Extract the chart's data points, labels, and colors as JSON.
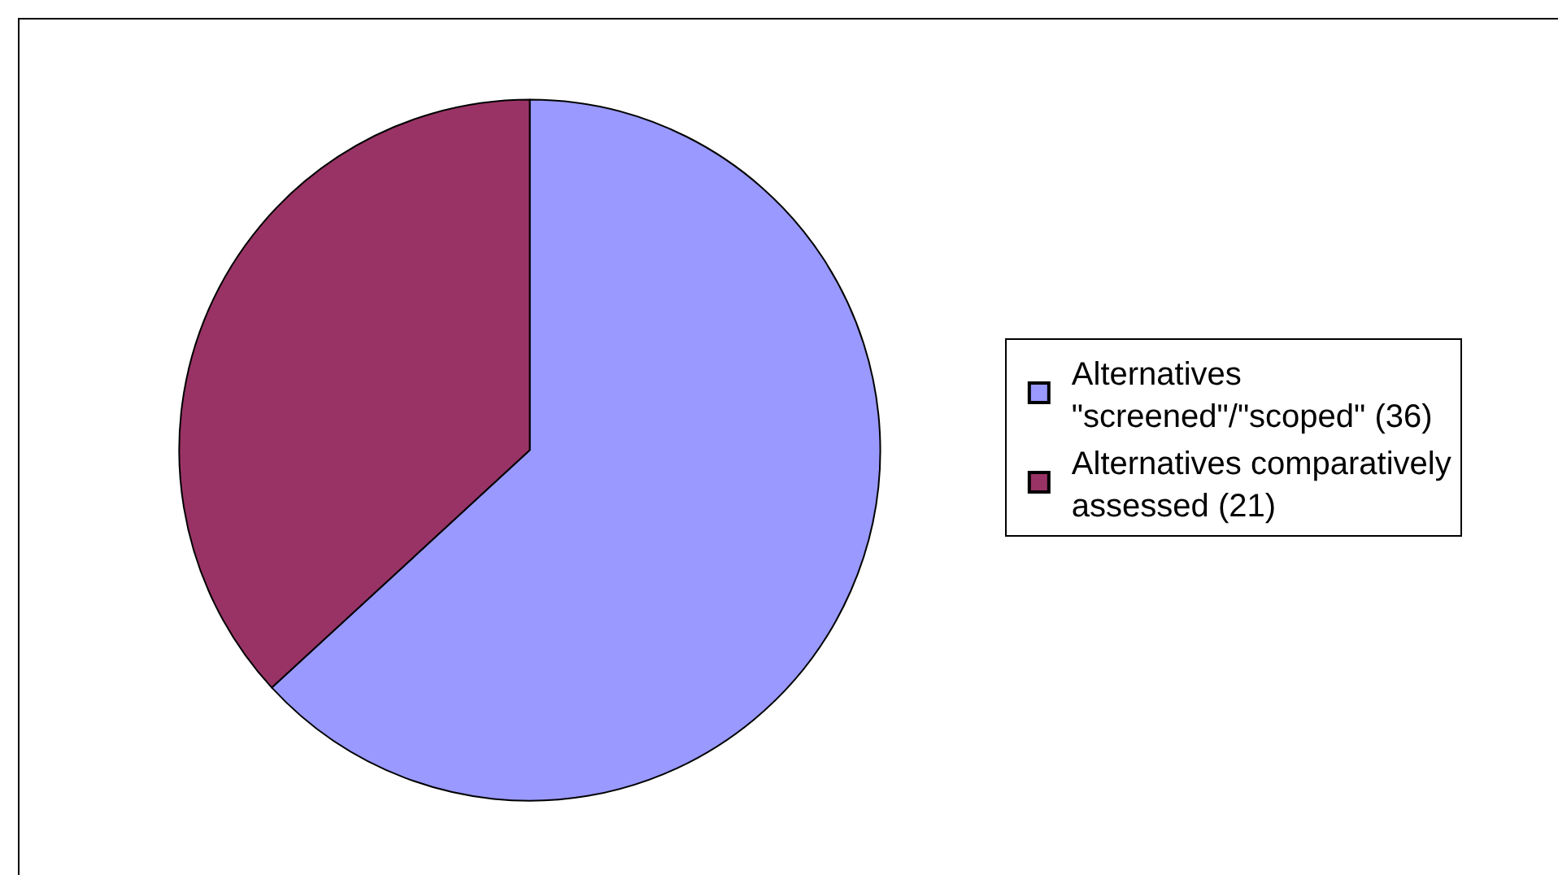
{
  "chart_data": {
    "type": "pie",
    "categories": [
      "Alternatives \"screened\"/\"scoped\" (36)",
      "Alternatives comparatively assessed (21)"
    ],
    "values": [
      36,
      21
    ],
    "colors": [
      "#9999ff",
      "#993366"
    ],
    "legend": "right"
  }
}
